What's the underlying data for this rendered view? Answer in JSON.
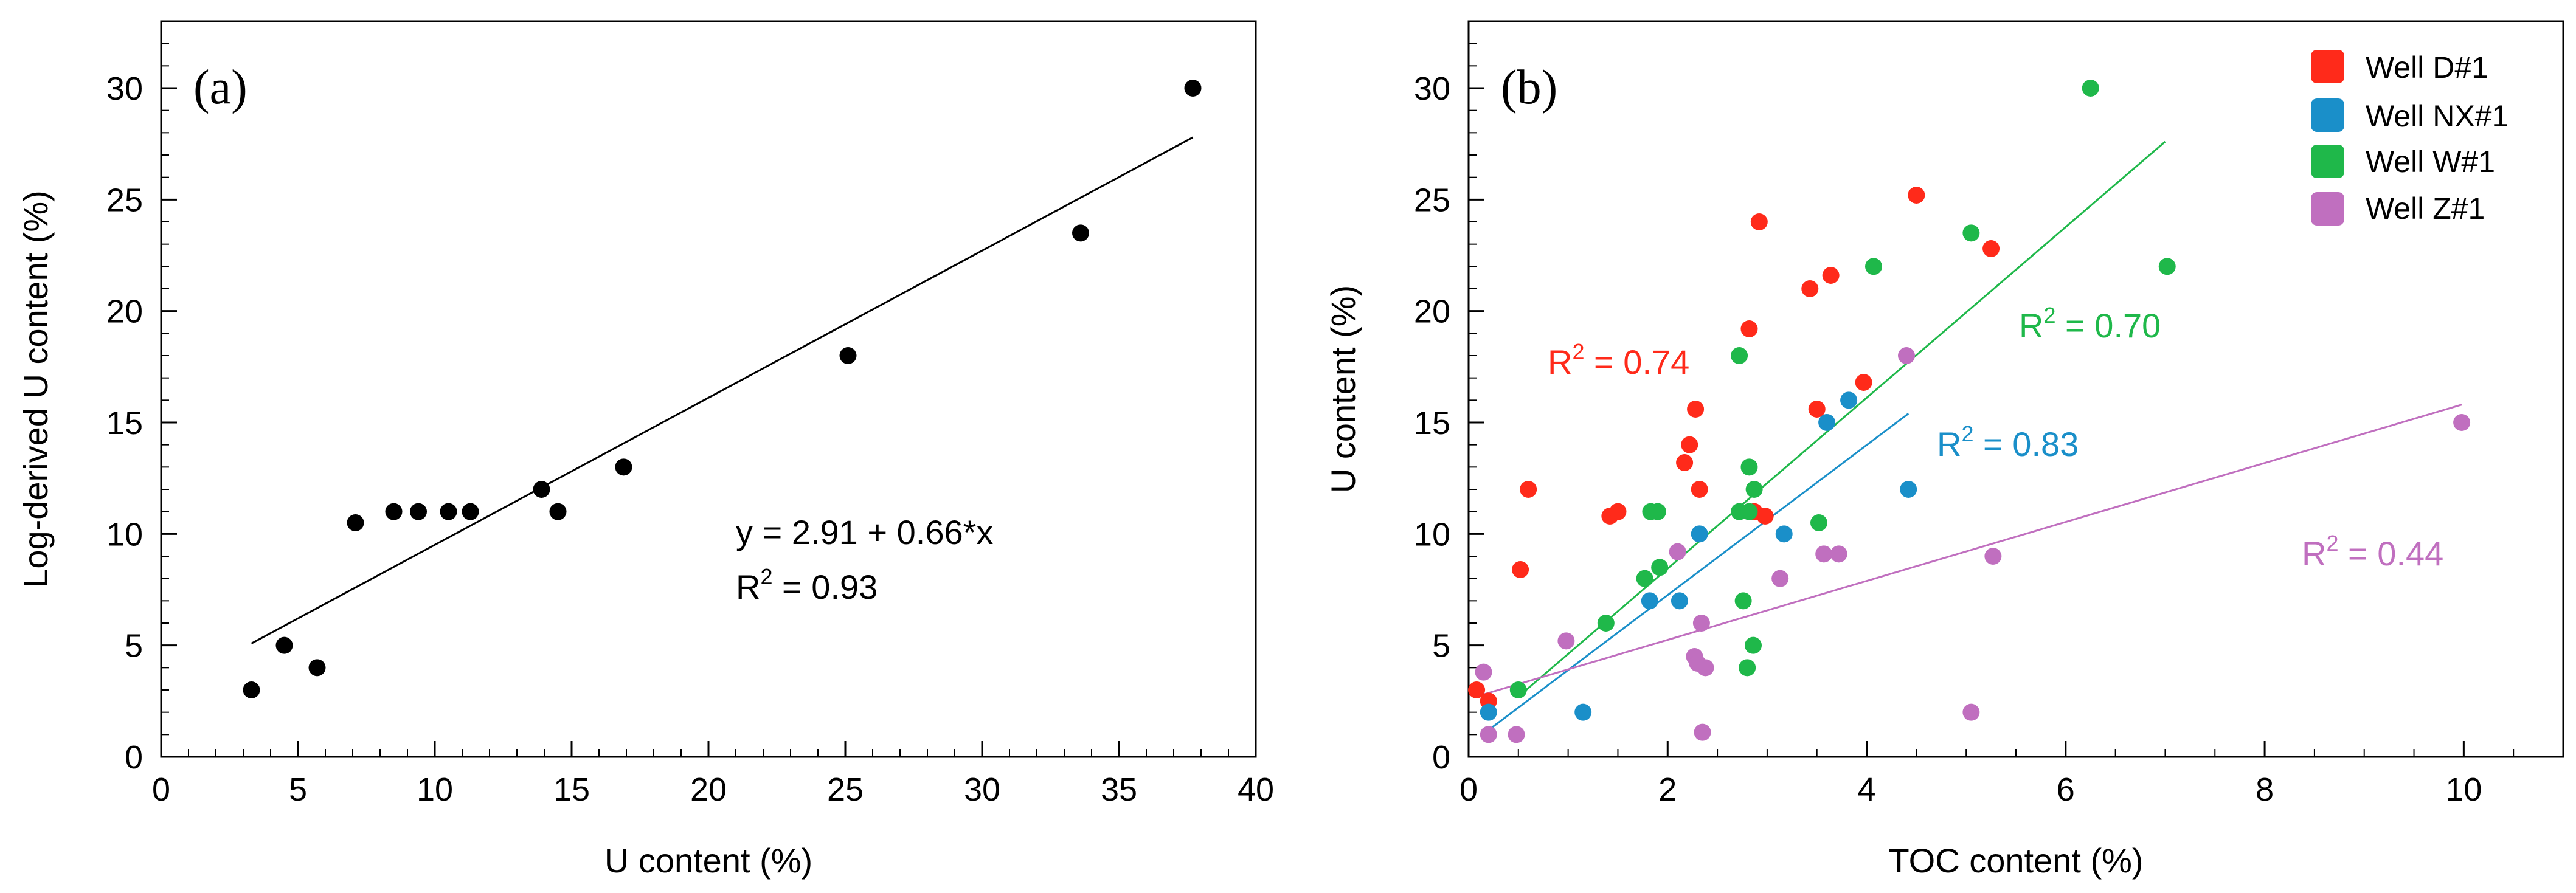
{
  "chart_data": [
    {
      "type": "scatter",
      "panel_label": "(a)",
      "xlabel": "U content (%)",
      "ylabel": "Log-derived U content (%)",
      "xlim": [
        0,
        40
      ],
      "ylim": [
        0,
        33
      ],
      "xticks": [
        0,
        5,
        10,
        15,
        20,
        25,
        30,
        35,
        40
      ],
      "yticks": [
        0,
        5,
        10,
        15,
        20,
        25,
        30
      ],
      "series": [
        {
          "name": "samples",
          "color": "#000000",
          "points": [
            [
              3.3,
              3
            ],
            [
              4.5,
              5
            ],
            [
              5.7,
              4
            ],
            [
              7.1,
              10.5
            ],
            [
              8.5,
              11
            ],
            [
              9.4,
              11
            ],
            [
              10.5,
              11
            ],
            [
              11.3,
              11
            ],
            [
              13.9,
              12
            ],
            [
              14.5,
              11
            ],
            [
              16.9,
              13
            ],
            [
              25.1,
              18
            ],
            [
              33.6,
              23.5
            ],
            [
              37.7,
              30
            ]
          ],
          "fit": {
            "x1": 3.3,
            "x2": 37.7,
            "intercept": 2.91,
            "slope": 0.66
          }
        }
      ],
      "annotations": {
        "equation": "y = 2.91 + 0.66*x",
        "r2_prefix": "R",
        "r2_sup": "2",
        "r2_value": " = 0.93"
      }
    },
    {
      "type": "scatter",
      "panel_label": "(b)",
      "xlabel": "TOC content (%)",
      "ylabel": "U content (%)",
      "xlim": [
        0,
        11
      ],
      "ylim": [
        0,
        33
      ],
      "xticks": [
        0,
        2,
        4,
        6,
        8,
        10
      ],
      "yticks": [
        0,
        5,
        10,
        15,
        20,
        25,
        30
      ],
      "series": [
        {
          "name": "Well D#1",
          "color": "#ff2a1a",
          "points": [
            [
              0.08,
              3
            ],
            [
              0.2,
              2.5
            ],
            [
              0.52,
              8.4
            ],
            [
              0.6,
              12
            ],
            [
              1.42,
              10.8
            ],
            [
              1.5,
              11
            ],
            [
              2.17,
              13.2
            ],
            [
              2.22,
              14
            ],
            [
              2.28,
              15.6
            ],
            [
              2.32,
              12
            ],
            [
              2.82,
              19.2
            ],
            [
              2.87,
              11
            ],
            [
              2.92,
              24
            ],
            [
              2.98,
              10.8
            ],
            [
              3.43,
              21
            ],
            [
              3.5,
              15.6
            ],
            [
              3.64,
              21.6
            ],
            [
              3.97,
              16.8
            ],
            [
              4.5,
              25.2
            ],
            [
              5.25,
              22.8
            ]
          ],
          "fit": null,
          "r2": {
            "prefix": "R",
            "sup": "2",
            "value": " = 0.74"
          }
        },
        {
          "name": "Well NX#1",
          "color": "#1a8fc9",
          "points": [
            [
              0.2,
              2
            ],
            [
              1.15,
              2
            ],
            [
              1.82,
              7
            ],
            [
              2.12,
              7
            ],
            [
              2.32,
              10
            ],
            [
              3.17,
              10
            ],
            [
              3.6,
              15
            ],
            [
              3.82,
              16
            ],
            [
              4.42,
              12
            ]
          ],
          "fit": {
            "x1": 0.2,
            "x2": 4.42,
            "y1": 1.2,
            "y2": 15.4
          },
          "r2": {
            "prefix": "R",
            "sup": "2",
            "value": " = 0.83"
          }
        },
        {
          "name": "Well W#1",
          "color": "#1fb84a",
          "points": [
            [
              0.5,
              3
            ],
            [
              1.38,
              6
            ],
            [
              1.77,
              8
            ],
            [
              1.83,
              11
            ],
            [
              1.9,
              11
            ],
            [
              1.92,
              8.5
            ],
            [
              2.72,
              11
            ],
            [
              2.72,
              18
            ],
            [
              2.76,
              7
            ],
            [
              2.8,
              4
            ],
            [
              2.82,
              11
            ],
            [
              2.82,
              13
            ],
            [
              2.86,
              5
            ],
            [
              2.87,
              12
            ],
            [
              3.52,
              10.5
            ],
            [
              4.07,
              22
            ],
            [
              5.05,
              23.5
            ],
            [
              6.25,
              30
            ],
            [
              7.02,
              22
            ]
          ],
          "fit": {
            "x1": 0.5,
            "x2": 7.0,
            "y1": 2.7,
            "y2": 27.6
          },
          "r2": {
            "prefix": "R",
            "sup": "2",
            "value": " = 0.70"
          }
        },
        {
          "name": "Well Z#1",
          "color": "#c06fbf",
          "points": [
            [
              0.15,
              3.8
            ],
            [
              0.2,
              1
            ],
            [
              0.48,
              1
            ],
            [
              0.98,
              5.2
            ],
            [
              2.1,
              9.2
            ],
            [
              2.27,
              4.5
            ],
            [
              2.3,
              4.2
            ],
            [
              2.34,
              6
            ],
            [
              2.35,
              1.1
            ],
            [
              2.38,
              4
            ],
            [
              3.13,
              8
            ],
            [
              3.57,
              9.1
            ],
            [
              3.72,
              9.1
            ],
            [
              4.4,
              18
            ],
            [
              5.05,
              2
            ],
            [
              5.27,
              9
            ],
            [
              9.98,
              15
            ]
          ],
          "fit": {
            "x1": 0.15,
            "x2": 9.98,
            "y1": 2.8,
            "y2": 15.8
          },
          "r2": {
            "prefix": "R",
            "sup": "2",
            "value": " = 0.44"
          }
        }
      ],
      "legend_position": "top-right"
    }
  ]
}
